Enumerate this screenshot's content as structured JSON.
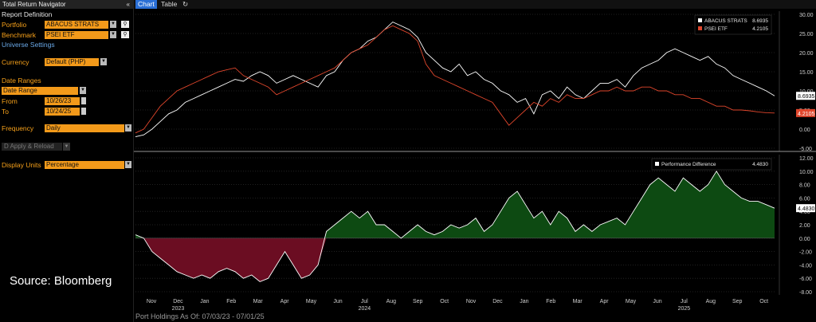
{
  "window": {
    "title": "Total Return Navigator",
    "collapse_icon": "double-chevron-left-icon"
  },
  "report": {
    "heading": "Report Definition",
    "portfolio_label": "Portfolio",
    "portfolio_value": "ABACUS STRATS",
    "benchmark_label": "Benchmark",
    "benchmark_value": "PSEI ETF",
    "universe_link": "Universe Settings"
  },
  "currency": {
    "label": "Currency",
    "value": "Default (PHP)"
  },
  "dates": {
    "heading": "Date Ranges",
    "range_value": "Date Range",
    "from_label": "From",
    "from_value": "10/26/23",
    "to_label": "To",
    "to_value": "10/24/25"
  },
  "frequency": {
    "label": "Frequency",
    "value": "Daily"
  },
  "apply": {
    "label": "Apply & Reload"
  },
  "display": {
    "label": "Display Units",
    "value": "Percentage"
  },
  "source": "Source: Bloomberg",
  "tabs": [
    {
      "label": "Chart",
      "active": true
    },
    {
      "label": "Table",
      "active": false
    }
  ],
  "refresh_icon": "refresh-icon",
  "footer": "Port Holdings As Of: 07/03/23 - 07/01/25",
  "colors": {
    "portfolio": "#ffffff",
    "benchmark": "#e0462c",
    "positive_fill": "#0d4a12",
    "negative_fill": "#6b0d22",
    "panel": "#000000"
  },
  "chart_data": [
    {
      "type": "line",
      "series": [
        {
          "name": "ABACUS STRATS",
          "last": "8.6935",
          "last_label": "8.6935",
          "color": "#ffffff",
          "values": [
            -2,
            -1.5,
            0,
            2,
            4,
            5,
            7,
            8,
            9,
            10,
            11,
            12,
            13,
            12.5,
            14,
            15,
            14,
            12,
            13,
            14,
            13,
            12,
            11,
            14,
            15,
            18,
            20,
            21,
            23,
            24,
            26,
            28,
            27,
            26,
            24,
            20,
            18,
            16,
            15,
            17,
            14,
            15,
            13,
            12,
            10,
            9,
            7,
            8,
            4,
            9,
            10,
            8,
            11,
            9,
            8,
            10,
            12,
            12,
            13,
            11,
            14,
            16,
            17,
            18,
            20,
            21,
            20,
            19,
            18,
            19,
            17,
            16,
            14,
            13,
            12,
            11,
            10,
            8.7
          ]
        },
        {
          "name": "PSEI ETF",
          "last": "4.2105",
          "last_label": "4.2105",
          "color": "#e0462c",
          "values": [
            -1,
            0,
            3,
            6,
            8,
            10,
            11,
            12,
            13,
            14,
            15,
            15.5,
            16,
            14,
            13,
            12,
            11,
            9,
            10,
            11,
            12,
            13,
            14,
            15,
            16,
            18,
            20,
            21,
            22,
            24,
            26,
            27,
            26,
            25,
            23,
            17,
            14,
            13,
            12,
            11,
            10,
            9,
            8,
            7,
            4,
            1,
            3,
            5,
            7,
            6,
            8,
            7,
            9,
            8,
            8,
            9,
            10,
            10,
            11,
            10,
            10,
            11,
            11,
            10,
            10,
            9,
            9,
            8,
            8,
            7,
            6,
            6,
            5,
            5,
            4.8,
            4.5,
            4.3,
            4.2
          ]
        }
      ],
      "ylim": [
        -5,
        30
      ],
      "yticks": [
        "-5.00",
        "0.00",
        "5.00",
        "10.00",
        "15.00",
        "20.00",
        "25.00",
        "30.00"
      ]
    },
    {
      "type": "area",
      "series": [
        {
          "name": "Performance Difference",
          "last": "4.4830",
          "last_label": "4.4830",
          "color": "#ffffff",
          "values": [
            0.5,
            0,
            -2,
            -3,
            -4,
            -5,
            -5.5,
            -6,
            -5.5,
            -6,
            -5,
            -4.5,
            -5,
            -6,
            -5.5,
            -6.5,
            -6,
            -4,
            -2,
            -4,
            -6,
            -5.5,
            -4,
            1,
            2,
            3,
            4,
            3,
            4,
            2,
            2,
            1,
            0,
            1,
            2,
            1,
            0.5,
            1,
            2,
            1.5,
            2,
            3,
            1,
            2,
            4,
            6,
            7,
            5,
            3,
            4,
            2,
            4,
            3,
            1,
            2,
            1,
            2,
            2.5,
            3,
            2,
            4,
            6,
            8,
            9,
            8,
            7,
            9,
            8,
            7,
            8,
            10,
            8,
            7,
            6,
            5.5,
            5.5,
            5,
            4.48
          ]
        }
      ],
      "ylim": [
        -8,
        12
      ],
      "yticks": [
        "-8.00",
        "-6.00",
        "-4.00",
        "-2.00",
        "0.00",
        "2.00",
        "4.00",
        "6.00",
        "8.00",
        "10.00",
        "12.00"
      ]
    }
  ],
  "xaxis": {
    "months": [
      "Nov",
      "Dec",
      "Jan",
      "Feb",
      "Mar",
      "Apr",
      "May",
      "Jun",
      "Jul",
      "Aug",
      "Sep",
      "Oct",
      "Nov",
      "Dec",
      "Jan",
      "Feb",
      "Mar",
      "Apr",
      "May",
      "Jun",
      "Jul",
      "Aug",
      "Sep",
      "Oct"
    ],
    "years": [
      "2023",
      "2024",
      "2025"
    ]
  }
}
